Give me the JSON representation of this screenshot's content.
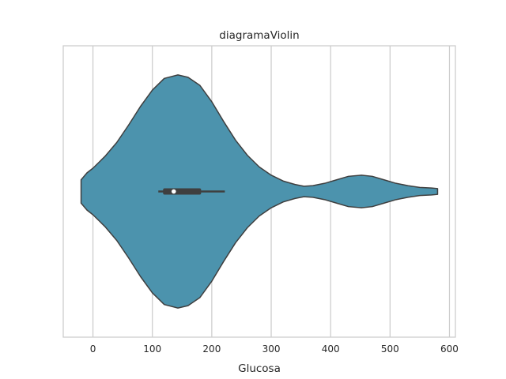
{
  "chart_data": {
    "type": "violin",
    "title": "diagramaViolin",
    "xlabel": "Glucosa",
    "ylabel": "",
    "xlim": [
      -50,
      610
    ],
    "xticks": [
      0,
      100,
      200,
      300,
      400,
      500,
      600
    ],
    "grid": "vertical",
    "color": "#4c93ad",
    "outline_color": "#3f3f3f",
    "box_color": "#3f3f3f",
    "series": [
      {
        "variable": "Glucosa",
        "min": 110,
        "q1": 118,
        "median": 136,
        "q3": 182,
        "max": 222,
        "density": [
          [
            -20,
            0.1
          ],
          [
            -10,
            0.16
          ],
          [
            0,
            0.2
          ],
          [
            20,
            0.3
          ],
          [
            40,
            0.42
          ],
          [
            60,
            0.57
          ],
          [
            80,
            0.73
          ],
          [
            100,
            0.87
          ],
          [
            120,
            0.97
          ],
          [
            143,
            1.0
          ],
          [
            160,
            0.98
          ],
          [
            180,
            0.91
          ],
          [
            200,
            0.77
          ],
          [
            220,
            0.6
          ],
          [
            240,
            0.44
          ],
          [
            260,
            0.31
          ],
          [
            280,
            0.21
          ],
          [
            300,
            0.14
          ],
          [
            320,
            0.09
          ],
          [
            340,
            0.06
          ],
          [
            355,
            0.045
          ],
          [
            370,
            0.05
          ],
          [
            390,
            0.07
          ],
          [
            410,
            0.1
          ],
          [
            430,
            0.13
          ],
          [
            452,
            0.14
          ],
          [
            470,
            0.13
          ],
          [
            490,
            0.1
          ],
          [
            510,
            0.07
          ],
          [
            530,
            0.05
          ],
          [
            550,
            0.035
          ],
          [
            570,
            0.03
          ],
          [
            580,
            0.025
          ]
        ]
      }
    ]
  }
}
